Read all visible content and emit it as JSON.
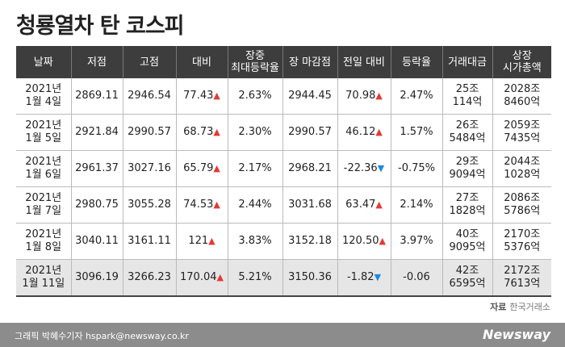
{
  "header": {
    "title": "청룡열차 탄 코스피"
  },
  "table": {
    "columns": [
      "날짜",
      "저점",
      "고점",
      "대비",
      "장중\n최대등락율",
      "장 마감점",
      "전일 대비",
      "등락율",
      "거래대금",
      "상장\n시가총액"
    ],
    "rows": [
      [
        "2021년\n1월 4일",
        "2869.11",
        "2946.54",
        "77.43",
        "2.63%",
        "2944.45",
        "70.98",
        "2.47%",
        "25조\n114억",
        "2028조\n8460억"
      ],
      [
        "2021년\n1월 5일",
        "2921.84",
        "2990.57",
        "68.73",
        "2.30%",
        "2990.57",
        "46.12",
        "1.57%",
        "26조\n5484억",
        "2059조\n7435억"
      ],
      [
        "2021년\n1월 6일",
        "2961.37",
        "3027.16",
        "65.79",
        "2.17%",
        "2968.21",
        "-22.36",
        "-0.75%",
        "29조\n9094억",
        "2044조\n1028억"
      ],
      [
        "2021년\n1월 7일",
        "2980.75",
        "3055.28",
        "74.53",
        "2.44%",
        "3031.68",
        "63.47",
        "2.14%",
        "27조\n1828억",
        "2086조\n5786억"
      ],
      [
        "2021년\n1월 8일",
        "3040.11",
        "3161.11",
        "121",
        "3.83%",
        "3152.18",
        "120.50",
        "3.97%",
        "40조\n9095억",
        "2170조\n5376억"
      ],
      [
        "2021년\n1월 11일",
        "3096.19",
        "3266.23",
        "170.04",
        "5.21%",
        "3150.36",
        "-1.82",
        "-0.06",
        "42조\n6595억",
        "2172조\n7613억"
      ]
    ]
  },
  "source": {
    "label": "자료",
    "name": "한국거래소"
  },
  "footer": {
    "credit": "그래픽 박혜수기자 hspark@newsway.co.kr",
    "brand": "Newsway"
  }
}
